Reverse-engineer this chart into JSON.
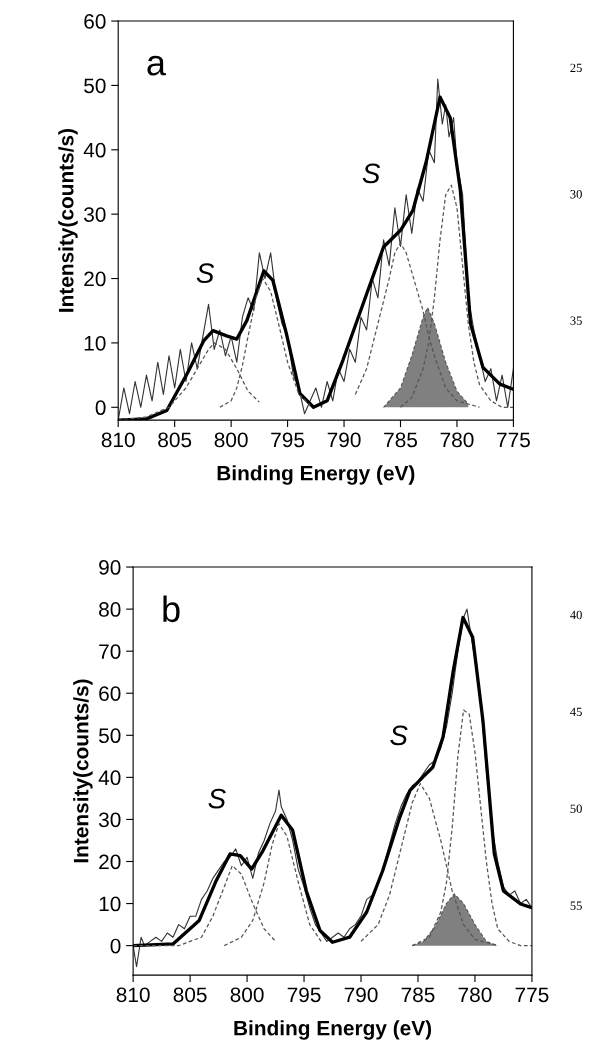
{
  "chart_data": [
    {
      "type": "line",
      "xlabel": "Binding Energy (eV)",
      "ylabel": "Intensity(counts/s)",
      "xlim": [
        810,
        775
      ],
      "xticks": [
        810,
        805,
        800,
        795,
        790,
        785,
        780,
        775
      ],
      "ylim": [
        -2,
        60
      ],
      "yticks": [
        0,
        10,
        20,
        30,
        40,
        50,
        60
      ],
      "grid": false,
      "legend": false,
      "annotations": [
        "a",
        "S",
        "S",
        "25",
        "30",
        "35"
      ],
      "series": [
        {
          "color": "#333333",
          "line_style": "solid",
          "x": [
            810,
            809.5,
            809,
            808.5,
            808,
            807.5,
            807,
            806.5,
            806,
            805.5,
            805,
            804.5,
            804,
            803.5,
            803,
            802.5,
            802,
            801.5,
            801,
            800.5,
            800,
            799.5,
            799,
            798.5,
            798,
            797.5,
            797,
            796.5,
            796,
            795.5,
            795,
            794.5,
            794,
            793.5,
            793,
            792.5,
            792,
            791.5,
            791,
            790.5,
            790,
            789.5,
            789,
            788.5,
            788,
            787.5,
            787,
            786.5,
            786,
            785.5,
            785,
            784.5,
            784,
            783.5,
            783,
            782.5,
            782,
            781.7,
            781.3,
            781,
            780.7,
            780.3,
            780,
            779.5,
            779,
            778.5,
            778,
            777.5,
            777,
            776.5,
            776,
            775.5,
            775
          ],
          "values": [
            -2,
            3,
            -1,
            4,
            0,
            5,
            1,
            7,
            2,
            8,
            3,
            9,
            4,
            10,
            6,
            11,
            16,
            9,
            12,
            8,
            11,
            7,
            14,
            17,
            15,
            24,
            20,
            24,
            17,
            13,
            11,
            5,
            3,
            -1,
            1,
            3,
            0,
            4,
            1,
            6,
            4,
            9,
            7,
            14,
            12,
            20,
            17,
            26,
            22,
            31,
            25,
            33,
            27,
            34,
            32,
            40,
            38,
            51,
            44,
            47,
            42,
            45,
            38,
            33,
            17,
            12,
            8,
            4,
            6,
            1,
            5,
            0,
            6
          ]
        },
        {
          "color": "#000000",
          "line_style": "solid",
          "x": [
            810,
            807.5,
            805.7,
            803.9,
            802.4,
            801.6,
            800.4,
            799.5,
            798.6,
            797.1,
            796.3,
            795.1,
            793.9,
            792.7,
            791.5,
            790.1,
            788,
            786.5,
            785,
            783.9,
            782.7,
            781.5,
            780.6,
            779.7,
            778.8,
            777.7,
            776.2,
            775
          ],
          "values": [
            -2,
            -1.8,
            -0.5,
            5.2,
            10.4,
            11.9,
            11.1,
            10.6,
            13.5,
            21.2,
            19.7,
            11.4,
            2.1,
            0,
            1,
            7.3,
            17.6,
            24.9,
            27.5,
            30.6,
            38.3,
            48.2,
            45,
            33.7,
            13,
            6.2,
            3.6,
            2.8
          ]
        },
        {
          "color": "#555555",
          "line_style": "dashed",
          "x": [
            810,
            807.5,
            805.5,
            804,
            803,
            802,
            801.5,
            800.5,
            799.5,
            798.5,
            797.5
          ],
          "values": [
            -2,
            -1.5,
            0,
            3,
            6,
            9,
            10,
            9,
            6,
            2.5,
            0.8
          ]
        },
        {
          "color": "#555555",
          "line_style": "dashed",
          "x": [
            801,
            800,
            799.5,
            799,
            798.5,
            797.8,
            797.2,
            796.5,
            795.8,
            795,
            794,
            793
          ],
          "values": [
            0,
            1,
            3,
            6.5,
            11,
            17,
            20,
            18,
            13,
            7,
            2,
            0.3
          ]
        },
        {
          "color": "#555555",
          "line_style": "dashed",
          "x": [
            789,
            788,
            787,
            786,
            785.5,
            785,
            784.5,
            784,
            783,
            782.5,
            782,
            781,
            780,
            778
          ],
          "values": [
            2,
            6,
            13,
            20,
            24,
            25.5,
            24,
            21,
            15,
            11,
            8,
            3,
            1,
            0
          ]
        },
        {
          "color": "#555555",
          "line_style": "dashed",
          "x": [
            785,
            784,
            783,
            782.5,
            782,
            781.5,
            781,
            780.5,
            780,
            779.5,
            779,
            778.5,
            778,
            777,
            776,
            775
          ],
          "values": [
            0,
            1.5,
            6,
            10,
            17,
            26,
            33,
            34.5,
            31,
            22,
            13,
            7,
            3.5,
            1,
            0,
            0
          ]
        },
        {
          "type": "area",
          "color": "#808080",
          "line_style": "dashed",
          "x": [
            786.5,
            785,
            784,
            783,
            782.6,
            782,
            781,
            780,
            779
          ],
          "values": [
            0,
            3,
            8,
            14,
            15.5,
            13,
            7,
            2.5,
            0.5
          ]
        }
      ]
    },
    {
      "type": "line",
      "xlabel": "Binding Energy (eV)",
      "ylabel": "Intensity(counts/s)",
      "xlim": [
        810,
        775
      ],
      "xticks": [
        810,
        805,
        800,
        795,
        790,
        785,
        780,
        775
      ],
      "ylim": [
        -7,
        90
      ],
      "yticks": [
        0,
        10,
        20,
        30,
        40,
        50,
        60,
        70,
        80,
        90
      ],
      "grid": false,
      "legend": false,
      "annotations": [
        "b",
        "S",
        "S",
        "40",
        "45",
        "50",
        "55"
      ],
      "series": [
        {
          "color": "#333333",
          "line_style": "solid",
          "x": [
            810,
            809.7,
            809.3,
            809,
            808.5,
            808,
            807.5,
            807,
            806.5,
            806,
            805.5,
            805,
            804.5,
            804,
            803.5,
            803,
            802.5,
            802,
            801.5,
            801,
            800.5,
            800,
            799.5,
            799,
            798.5,
            798,
            797.5,
            797.2,
            797,
            796.5,
            796,
            795.5,
            795,
            794.5,
            794,
            793.5,
            793,
            792.5,
            792,
            791.5,
            791,
            790.5,
            790,
            789.5,
            789,
            788.5,
            788,
            787.5,
            787,
            786.5,
            786,
            785.5,
            785,
            784.5,
            784,
            783.5,
            783,
            782.5,
            782,
            781.5,
            781,
            780.7,
            780.3,
            780,
            779.5,
            779,
            778.5,
            778,
            777.5,
            777,
            776.5,
            776,
            775.5,
            775
          ],
          "values": [
            0,
            -5,
            2,
            0,
            1,
            2,
            1,
            3,
            2,
            5,
            4,
            7,
            7,
            11,
            13,
            16,
            18,
            20,
            21,
            23,
            19,
            21,
            16,
            22,
            25,
            29,
            32,
            37,
            33,
            30,
            25,
            18,
            14,
            9,
            5,
            3,
            1,
            2,
            3,
            2,
            4,
            5,
            7,
            11,
            12,
            15,
            19,
            24,
            29,
            33,
            36,
            38,
            39,
            41,
            43,
            44,
            47,
            52,
            60,
            70,
            78,
            80,
            73,
            68,
            58,
            42,
            28,
            20,
            14,
            12,
            13,
            10,
            11,
            9
          ]
        },
        {
          "color": "#000000",
          "line_style": "solid",
          "x": [
            810,
            806.5,
            804.2,
            802.7,
            801.5,
            800.6,
            799.6,
            798.6,
            797,
            796,
            794.8,
            793.6,
            792.5,
            791,
            789.5,
            788.1,
            786.6,
            785.7,
            784.6,
            783.7,
            782.8,
            781.9,
            781.05,
            780.2,
            779.3,
            778.3,
            777.5,
            776,
            775
          ],
          "values": [
            0,
            0.4,
            6,
            15.5,
            21.8,
            21.4,
            18.2,
            22.6,
            31,
            27.4,
            13,
            3.6,
            0.8,
            2,
            8,
            17.8,
            30.5,
            36.9,
            40,
            42.4,
            49.6,
            65.4,
            78,
            73.3,
            53.5,
            21.8,
            13,
            9.9,
            9
          ]
        },
        {
          "color": "#555555",
          "line_style": "dashed",
          "x": [
            810,
            806,
            804,
            803,
            802,
            801.3,
            800.5,
            799.5,
            798.5,
            797.5
          ],
          "values": [
            0,
            0,
            2,
            7,
            14,
            19,
            17,
            10,
            4,
            1
          ]
        },
        {
          "color": "#555555",
          "line_style": "dashed",
          "x": [
            802,
            800.5,
            799.5,
            798.5,
            797.8,
            797.2,
            796.5,
            795.5,
            794.5,
            793.5
          ],
          "values": [
            0,
            2,
            6,
            15,
            24,
            29,
            26,
            15,
            5,
            1
          ]
        },
        {
          "color": "#555555",
          "line_style": "dashed",
          "x": [
            790,
            788.5,
            787.5,
            786.5,
            785.5,
            784.8,
            784,
            783,
            782,
            781,
            780,
            778
          ],
          "values": [
            1,
            5,
            12,
            23,
            34,
            38.5,
            35,
            25,
            13,
            5,
            1.5,
            0
          ]
        },
        {
          "color": "#555555",
          "line_style": "dashed",
          "x": [
            785.5,
            784,
            783,
            782.5,
            782,
            781.5,
            781,
            780.5,
            780,
            779.5,
            779,
            778.5,
            778,
            777,
            776,
            775
          ],
          "values": [
            0,
            2,
            8,
            15,
            28,
            45,
            56,
            55,
            46,
            33,
            20,
            10,
            4,
            1,
            0,
            0
          ]
        },
        {
          "type": "area",
          "color": "#808080",
          "line_style": "dashed",
          "x": [
            785.5,
            784.5,
            783.5,
            782.5,
            781.8,
            781,
            780,
            779,
            778
          ],
          "values": [
            0,
            1,
            4.5,
            10,
            12.3,
            10,
            5,
            1,
            0
          ]
        }
      ]
    }
  ]
}
